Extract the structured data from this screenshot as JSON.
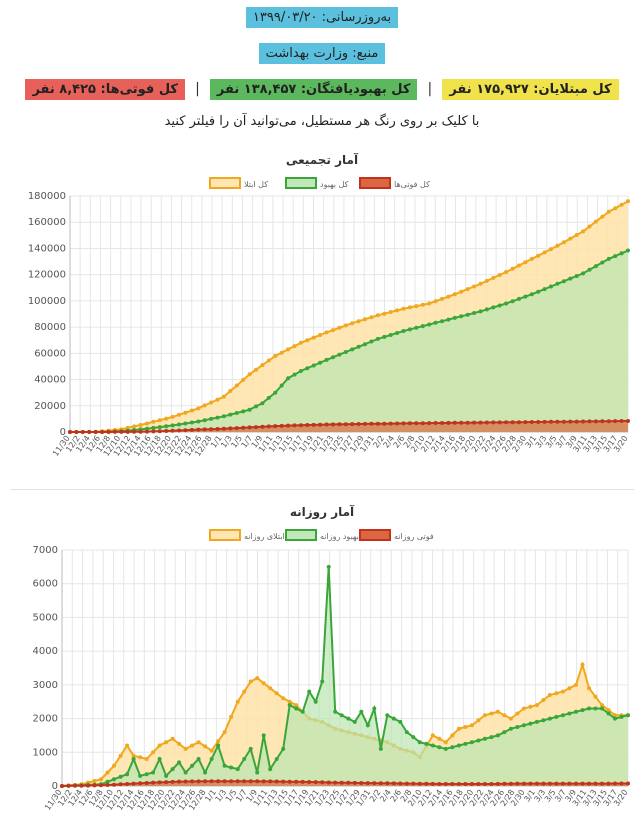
{
  "header": {
    "updated": "به‌روزرسانی: ۱۳۹۹/۰۳/۲۰",
    "source": "منبع: وزارت بهداشت",
    "stat_infected": "کل مبتلایان: ۱۷۵,۹۲۷ نفر",
    "stat_recovered": "کل بهبودیافتگان: ۱۳۸,۴۵۷ نفر",
    "stat_deaths": "کل فوتی‌ها: ۸,۴۲۵ نفر",
    "separator": "|",
    "hint": "با کلیک بر روی رنگ هر مستطیل، می‌توانید آن را فیلتر کنید"
  },
  "colors": {
    "infected_line": "#f0a81e",
    "infected_fill": "#ffe2a8",
    "recovered_line": "#3aa63a",
    "recovered_fill": "#b9e6b0",
    "deaths_line": "#c0341d",
    "deaths_fill": "#d9552e",
    "overlap_fill": "#c9cf86",
    "grid": "#e6e6e6"
  },
  "chart_data": [
    {
      "type": "area",
      "title": "آمار تجمیعی",
      "ylim": [
        0,
        180000
      ],
      "y_ticks": [
        0,
        20000,
        40000,
        60000,
        80000,
        100000,
        120000,
        140000,
        160000,
        180000
      ],
      "x_labels": [
        "11/30",
        "12/2",
        "12/4",
        "12/6",
        "12/8",
        "12/10",
        "12/12",
        "12/14",
        "12/16",
        "12/18",
        "12/20",
        "12/22",
        "12/24",
        "12/26",
        "12/28",
        "1/1",
        "1/3",
        "1/5",
        "1/7",
        "1/9",
        "1/11",
        "1/13",
        "1/15",
        "1/17",
        "1/19",
        "1/21",
        "1/23",
        "1/25",
        "1/27",
        "1/29",
        "1/31",
        "2/2",
        "2/4",
        "2/6",
        "2/8",
        "2/10",
        "2/12",
        "2/14",
        "2/16",
        "2/18",
        "2/20",
        "2/22",
        "2/24",
        "2/26",
        "2/28",
        "2/30",
        "3/1",
        "3/3",
        "3/5",
        "3/7",
        "3/9",
        "3/11",
        "3/13",
        "3/15",
        "3/17",
        "3/20"
      ],
      "legend": [
        "کل ابتلا",
        "کل بهبود",
        "کل فوتی‌ها"
      ],
      "legend_position": "top",
      "grid": true,
      "series": [
        {
          "name": "کل ابتلا",
          "points": [
            [
              0,
              0
            ],
            [
              4,
              150
            ],
            [
              8,
              2000
            ],
            [
              12,
              6500
            ],
            [
              16,
              11500
            ],
            [
              20,
              18000
            ],
            [
              24,
              27000
            ],
            [
              28,
              44000
            ],
            [
              32,
              58000
            ],
            [
              36,
              68000
            ],
            [
              40,
              76000
            ],
            [
              44,
              83000
            ],
            [
              48,
              89000
            ],
            [
              52,
              94000
            ],
            [
              56,
              98000
            ],
            [
              60,
              105000
            ],
            [
              64,
              113000
            ],
            [
              68,
              122000
            ],
            [
              72,
              132000
            ],
            [
              76,
              142000
            ],
            [
              80,
              153000
            ],
            [
              84,
              168000
            ],
            [
              87,
              175927
            ]
          ]
        },
        {
          "name": "کل بهبود",
          "points": [
            [
              0,
              0
            ],
            [
              5,
              0
            ],
            [
              8,
              550
            ],
            [
              12,
              2500
            ],
            [
              16,
              5000
            ],
            [
              20,
              8000
            ],
            [
              24,
              12000
            ],
            [
              28,
              17000
            ],
            [
              30,
              22000
            ],
            [
              32,
              30000
            ],
            [
              34,
              41000
            ],
            [
              36,
              46500
            ],
            [
              40,
              55000
            ],
            [
              44,
              63000
            ],
            [
              48,
              71000
            ],
            [
              52,
              77000
            ],
            [
              56,
              82000
            ],
            [
              60,
              87000
            ],
            [
              64,
              92000
            ],
            [
              68,
              98000
            ],
            [
              72,
              105000
            ],
            [
              76,
              113000
            ],
            [
              80,
              121000
            ],
            [
              84,
              132000
            ],
            [
              87,
              138457
            ]
          ]
        },
        {
          "name": "کل فوتی‌ها",
          "points": [
            [
              0,
              0
            ],
            [
              8,
              50
            ],
            [
              12,
              300
            ],
            [
              16,
              900
            ],
            [
              20,
              1800
            ],
            [
              24,
              2500
            ],
            [
              28,
              3500
            ],
            [
              32,
              4500
            ],
            [
              36,
              5200
            ],
            [
              40,
              5700
            ],
            [
              48,
              6300
            ],
            [
              56,
              6800
            ],
            [
              64,
              7200
            ],
            [
              72,
              7600
            ],
            [
              80,
              8000
            ],
            [
              87,
              8425
            ]
          ]
        }
      ]
    },
    {
      "type": "area",
      "title": "آمار روزانه",
      "ylim": [
        0,
        7000
      ],
      "y_ticks": [
        0,
        1000,
        2000,
        3000,
        4000,
        5000,
        6000,
        7000
      ],
      "x_labels": [
        "11/30",
        "12/2",
        "12/4",
        "12/6",
        "12/8",
        "12/10",
        "12/12",
        "12/14",
        "12/16",
        "12/18",
        "12/20",
        "12/22",
        "12/24",
        "12/26",
        "12/28",
        "1/1",
        "1/3",
        "1/5",
        "1/7",
        "1/9",
        "1/11",
        "1/13",
        "1/15",
        "1/17",
        "1/19",
        "1/21",
        "1/23",
        "1/25",
        "1/27",
        "1/29",
        "1/31",
        "2/2",
        "2/4",
        "2/6",
        "2/8",
        "2/10",
        "2/12",
        "2/14",
        "2/16",
        "2/18",
        "2/20",
        "2/22",
        "2/24",
        "2/26",
        "2/28",
        "2/30",
        "3/1",
        "3/3",
        "3/5",
        "3/7",
        "3/9",
        "3/11",
        "3/13",
        "3/15",
        "3/17",
        "3/20"
      ],
      "legend": [
        "ابتلای روزانه",
        "بهبود روزانه",
        "فوتی روزانه"
      ],
      "legend_position": "top",
      "grid": true,
      "series": [
        {
          "name": "ابتلای روزانه",
          "points": [
            [
              0,
              0
            ],
            [
              3,
              50
            ],
            [
              6,
              200
            ],
            [
              8,
              600
            ],
            [
              10,
              1200
            ],
            [
              11,
              900
            ],
            [
              13,
              800
            ],
            [
              15,
              1200
            ],
            [
              17,
              1400
            ],
            [
              19,
              1100
            ],
            [
              21,
              1300
            ],
            [
              23,
              1050
            ],
            [
              25,
              1600
            ],
            [
              27,
              2500
            ],
            [
              29,
              3100
            ],
            [
              30,
              3200
            ],
            [
              32,
              2900
            ],
            [
              34,
              2600
            ],
            [
              36,
              2400
            ],
            [
              37,
              2200
            ],
            [
              38,
              2000
            ],
            [
              40,
              1900
            ],
            [
              42,
              1700
            ],
            [
              44,
              1600
            ],
            [
              46,
              1500
            ],
            [
              48,
              1400
            ],
            [
              50,
              1300
            ],
            [
              52,
              1100
            ],
            [
              54,
              1000
            ],
            [
              55,
              850
            ],
            [
              57,
              1500
            ],
            [
              59,
              1300
            ],
            [
              61,
              1700
            ],
            [
              63,
              1800
            ],
            [
              65,
              2100
            ],
            [
              67,
              2200
            ],
            [
              69,
              2000
            ],
            [
              71,
              2300
            ],
            [
              73,
              2400
            ],
            [
              75,
              2700
            ],
            [
              77,
              2800
            ],
            [
              79,
              3000
            ],
            [
              80,
              3600
            ],
            [
              81,
              2900
            ],
            [
              83,
              2400
            ],
            [
              85,
              2100
            ],
            [
              87,
              2100
            ]
          ]
        },
        {
          "name": "بهبود روزانه",
          "points": [
            [
              0,
              0
            ],
            [
              6,
              50
            ],
            [
              8,
              200
            ],
            [
              10,
              350
            ],
            [
              11,
              800
            ],
            [
              12,
              300
            ],
            [
              14,
              400
            ],
            [
              15,
              800
            ],
            [
              16,
              300
            ],
            [
              18,
              700
            ],
            [
              19,
              400
            ],
            [
              21,
              800
            ],
            [
              22,
              400
            ],
            [
              24,
              1200
            ],
            [
              25,
              600
            ],
            [
              27,
              500
            ],
            [
              29,
              1100
            ],
            [
              30,
              400
            ],
            [
              31,
              1500
            ],
            [
              32,
              500
            ],
            [
              34,
              1100
            ],
            [
              35,
              2400
            ],
            [
              36,
              2300
            ],
            [
              37,
              2200
            ],
            [
              38,
              2800
            ],
            [
              39,
              2500
            ],
            [
              40,
              3100
            ],
            [
              41,
              6500
            ],
            [
              42,
              2200
            ],
            [
              44,
              2000
            ],
            [
              45,
              1900
            ],
            [
              46,
              2200
            ],
            [
              47,
              1800
            ],
            [
              48,
              2300
            ],
            [
              49,
              1100
            ],
            [
              50,
              2100
            ],
            [
              52,
              1900
            ],
            [
              53,
              1600
            ],
            [
              55,
              1300
            ],
            [
              57,
              1200
            ],
            [
              59,
              1100
            ],
            [
              61,
              1200
            ],
            [
              63,
              1300
            ],
            [
              65,
              1400
            ],
            [
              67,
              1500
            ],
            [
              69,
              1700
            ],
            [
              71,
              1800
            ],
            [
              73,
              1900
            ],
            [
              75,
              2000
            ],
            [
              77,
              2100
            ],
            [
              79,
              2200
            ],
            [
              81,
              2300
            ],
            [
              83,
              2300
            ],
            [
              85,
              2000
            ],
            [
              87,
              2100
            ]
          ]
        },
        {
          "name": "فوتی روزانه",
          "points": [
            [
              0,
              0
            ],
            [
              6,
              20
            ],
            [
              10,
              60
            ],
            [
              14,
              100
            ],
            [
              18,
              130
            ],
            [
              22,
              140
            ],
            [
              26,
              140
            ],
            [
              30,
              140
            ],
            [
              34,
              130
            ],
            [
              38,
              120
            ],
            [
              42,
              100
            ],
            [
              46,
              90
            ],
            [
              50,
              80
            ],
            [
              54,
              70
            ],
            [
              58,
              60
            ],
            [
              62,
              60
            ],
            [
              66,
              60
            ],
            [
              70,
              70
            ],
            [
              74,
              70
            ],
            [
              78,
              70
            ],
            [
              82,
              70
            ],
            [
              87,
              75
            ]
          ]
        }
      ]
    }
  ]
}
